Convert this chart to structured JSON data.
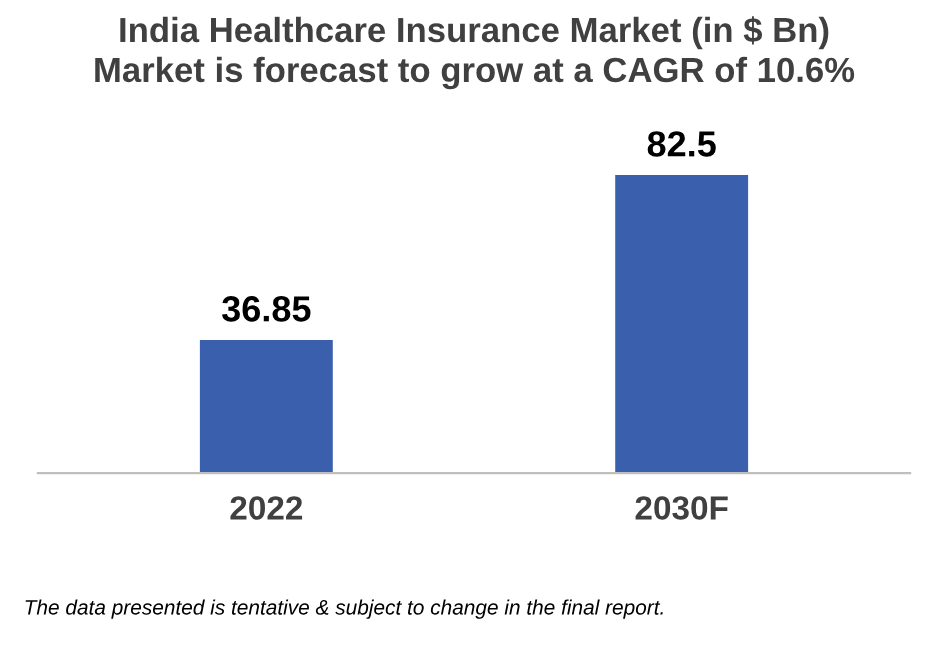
{
  "chart_data": {
    "type": "bar",
    "title": "India Healthcare Insurance Market (in $ Bn)\nMarket is forecast to grow at a CAGR of 10.6%",
    "categories": [
      "2022",
      "2030F"
    ],
    "values": [
      36.85,
      82.5
    ],
    "color": "#3a5fad",
    "data_labels": true,
    "grid": false,
    "annotations": [
      "The data presented is tentative & subject to change in the final report."
    ]
  }
}
